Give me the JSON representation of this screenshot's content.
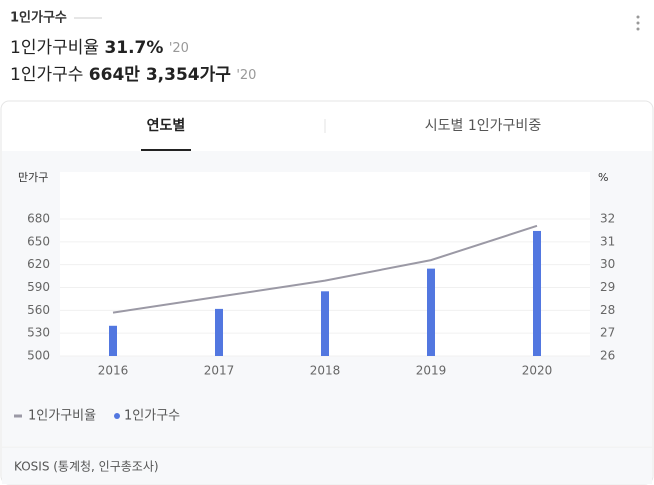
{
  "header": {
    "title": "1인가구수",
    "stats": [
      {
        "label": "1인가구비율",
        "value": "31.7%",
        "year": "'20"
      },
      {
        "label": "1인가구수",
        "value": "664만 3,354가구",
        "year": "'20"
      }
    ]
  },
  "tabs": [
    "연도별",
    "시도별 1인가구비중"
  ],
  "chart_data": {
    "type": "bar",
    "categories": [
      "2016",
      "2017",
      "2018",
      "2019",
      "2020"
    ],
    "ylabel": "만가구",
    "y2label": "%",
    "series": [
      {
        "name": "1인가구비율",
        "type": "line",
        "axis": "y2",
        "color": "#9b99a5",
        "values": [
          27.9,
          28.6,
          29.3,
          30.2,
          31.7
        ]
      },
      {
        "name": "1인가구수",
        "type": "bar",
        "color": "#5277e0",
        "values": [
          539.7,
          561.9,
          585,
          614.8,
          664.3
        ]
      }
    ],
    "ylim": [
      500,
      680
    ],
    "yticks": [
      500,
      530,
      560,
      590,
      620,
      650,
      680
    ],
    "y2lim": [
      26,
      32
    ],
    "y2ticks": [
      26,
      27,
      28,
      29,
      30,
      31,
      32
    ],
    "grid": true,
    "legend": "bottom-left"
  },
  "source": "KOSIS (통계청, 인구총조사)"
}
